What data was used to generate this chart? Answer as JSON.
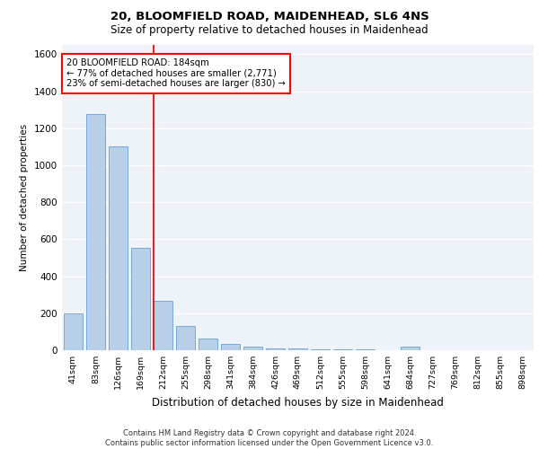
{
  "title_line1": "20, BLOOMFIELD ROAD, MAIDENHEAD, SL6 4NS",
  "title_line2": "Size of property relative to detached houses in Maidenhead",
  "xlabel": "Distribution of detached houses by size in Maidenhead",
  "ylabel": "Number of detached properties",
  "footer_line1": "Contains HM Land Registry data © Crown copyright and database right 2024.",
  "footer_line2": "Contains public sector information licensed under the Open Government Licence v3.0.",
  "categories": [
    "41sqm",
    "83sqm",
    "126sqm",
    "169sqm",
    "212sqm",
    "255sqm",
    "298sqm",
    "341sqm",
    "384sqm",
    "426sqm",
    "469sqm",
    "512sqm",
    "555sqm",
    "598sqm",
    "641sqm",
    "684sqm",
    "727sqm",
    "769sqm",
    "812sqm",
    "855sqm",
    "898sqm"
  ],
  "values": [
    200,
    1275,
    1100,
    555,
    265,
    130,
    65,
    35,
    20,
    10,
    10,
    5,
    5,
    5,
    0,
    20,
    0,
    0,
    0,
    0,
    0
  ],
  "bar_color": "#b8cfe8",
  "bar_edge_color": "#6a9fd8",
  "vline_x": 3.57,
  "vline_color": "red",
  "annotation_text_line1": "20 BLOOMFIELD ROAD: 184sqm",
  "annotation_text_line2": "← 77% of detached houses are smaller (2,771)",
  "annotation_text_line3": "23% of semi-detached houses are larger (830) →",
  "ylim": [
    0,
    1650
  ],
  "yticks": [
    0,
    200,
    400,
    600,
    800,
    1000,
    1200,
    1400,
    1600
  ],
  "bg_color": "#eef2f9",
  "grid_color": "#ffffff"
}
